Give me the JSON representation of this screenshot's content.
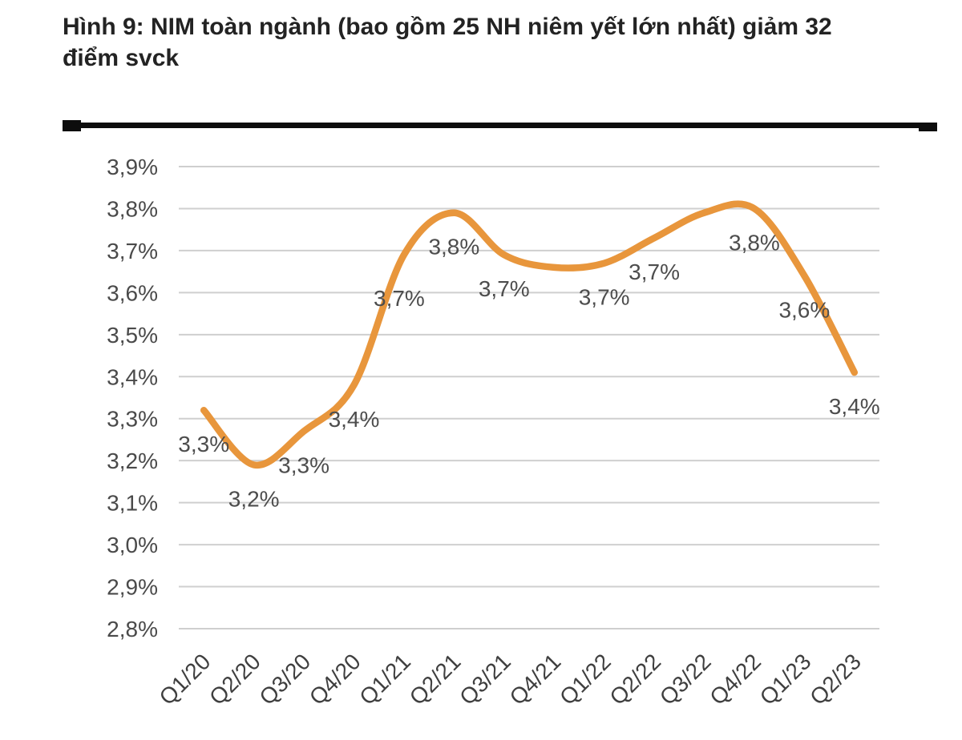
{
  "figure": {
    "title_line1": "Hình 9: NIM toàn ngành (bao gồm 25 NH niêm yết lớn nhất) giảm 32",
    "title_line2": "điểm svck"
  },
  "chart_data": {
    "type": "line",
    "smooth": true,
    "legend_position": "none",
    "grid": true,
    "categories": [
      "Q1/20",
      "Q2/20",
      "Q3/20",
      "Q4/20",
      "Q1/21",
      "Q2/21",
      "Q3/21",
      "Q4/21",
      "Q1/22",
      "Q2/22",
      "Q3/22",
      "Q4/22",
      "Q1/23",
      "Q2/23"
    ],
    "series": [
      {
        "name": "NIM",
        "color": "#E8963C",
        "values": [
          3.32,
          3.19,
          3.27,
          3.38,
          3.69,
          3.79,
          3.69,
          3.66,
          3.67,
          3.73,
          3.79,
          3.8,
          3.64,
          3.41
        ],
        "data_labels": [
          "3,3%",
          "3,2%",
          "3,3%",
          "3,4%",
          "3,7%",
          "3,8%",
          "3,7%",
          null,
          "3,7%",
          "3,7%",
          null,
          "3,8%",
          "3,6%",
          "3,4%"
        ]
      }
    ],
    "y_axis": {
      "min": 2.8,
      "max": 3.9,
      "step": 0.1,
      "tick_labels": [
        "3,9%",
        "3,8%",
        "3,7%",
        "3,6%",
        "3,5%",
        "3,4%",
        "3,3%",
        "3,2%",
        "3,1%",
        "3,0%",
        "2,9%",
        "2,8%"
      ]
    },
    "x_axis": {
      "label_rotation": -45
    }
  }
}
